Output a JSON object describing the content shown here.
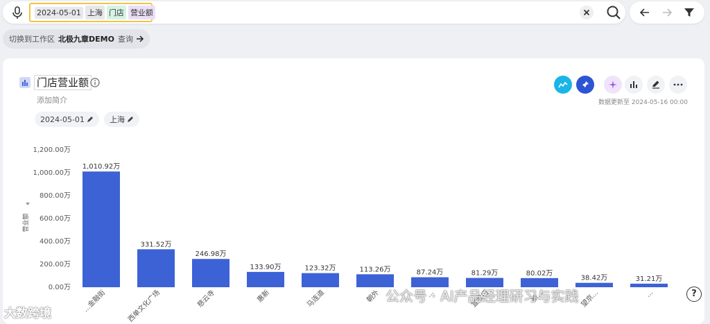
{
  "search": {
    "tokens": {
      "date": "2024-05-01",
      "location": "上海",
      "dimension": "门店",
      "metric": "营业额"
    }
  },
  "workspace": {
    "prefix": "切换到工作区",
    "name": "北极九章DEMO",
    "action": "查询"
  },
  "card": {
    "title": "门店营业额",
    "subtitle": "添加简介",
    "filters": {
      "date": "2024-05-01",
      "location": "上海"
    },
    "update_time": "数据更新至 2024-05-16 00:00"
  },
  "colors": {
    "bar": "#3d62d6",
    "accent_cyan": "#19b5e8",
    "accent_blue": "#2e54d6",
    "accent_purple": "#9b4fe3",
    "query_border": "#f3c53f"
  },
  "chart_data": {
    "type": "bar",
    "ylabel": "营业额",
    "ylim": [
      0,
      1200
    ],
    "yticks": [
      "0.00万",
      "200.00万",
      "400.00万",
      "600.00万",
      "800.00万",
      "1,000.00万",
      "1,200.00万"
    ],
    "categories": [
      "...金融街",
      "西单文化广场",
      "慈云寺",
      "惠新",
      "马连道",
      "朝外",
      "...",
      "宣武门",
      "新...",
      "望京...",
      "..."
    ],
    "values": [
      1010.92,
      331.52,
      246.98,
      133.9,
      123.32,
      113.26,
      87.24,
      81.29,
      80.02,
      38.42,
      31.21
    ],
    "labels": [
      "1,010.92万",
      "331.52万",
      "246.98万",
      "133.90万",
      "123.32万",
      "113.26万",
      "87.24万",
      "81.29万",
      "80.02万",
      "38.42万",
      "31.21万"
    ],
    "grid": false,
    "legend": "none"
  },
  "watermarks": {
    "left": "大数跨境",
    "right": "公众号 · AI产品经理研习与实践"
  }
}
